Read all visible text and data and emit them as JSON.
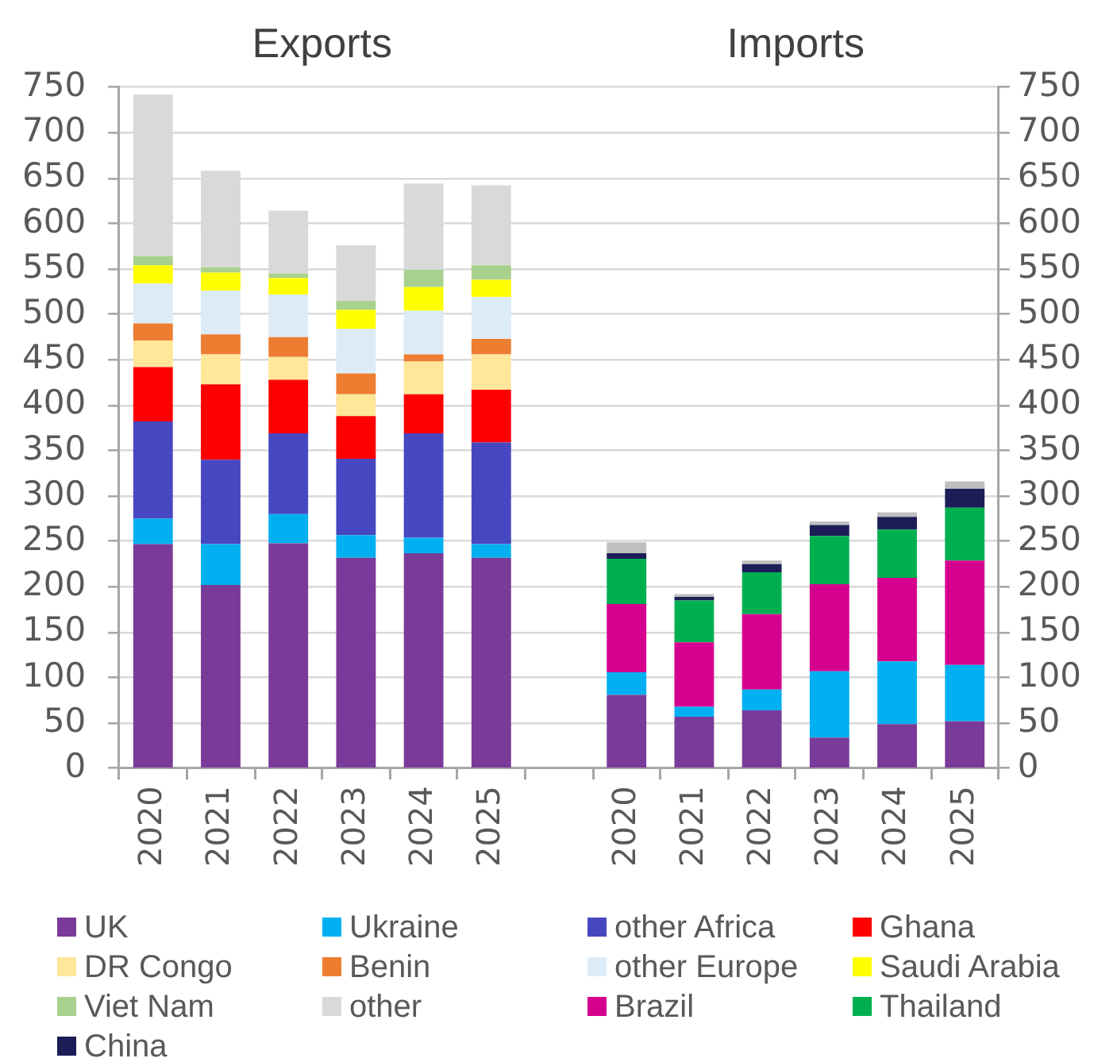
{
  "chart_data": {
    "type": "bar",
    "stacked": true,
    "categories": [
      "2020",
      "2021",
      "2022",
      "2023",
      "2024",
      "2025",
      null,
      "2020",
      "2021",
      "2022",
      "2023",
      "2024",
      "2025"
    ],
    "annotations": [
      "Exports",
      "Imports"
    ],
    "ylim": [
      0,
      750
    ],
    "yticks": [
      0,
      50,
      100,
      150,
      200,
      250,
      300,
      350,
      400,
      450,
      500,
      550,
      600,
      650,
      700,
      750
    ],
    "y2lim": [
      0,
      750
    ],
    "y2ticks": [
      0,
      50,
      100,
      150,
      200,
      250,
      300,
      350,
      400,
      450,
      500,
      550,
      600,
      650,
      700,
      750
    ],
    "grid": "y",
    "legend": "bottom",
    "series": [
      {
        "name": "UK",
        "color": "#7a3a99",
        "values": [
          247,
          202,
          248,
          232,
          237,
          232,
          null,
          81,
          57,
          64,
          34,
          49,
          52
        ]
      },
      {
        "name": "Ukraine",
        "color": "#00b0f0",
        "values": [
          28,
          45,
          32,
          25,
          17,
          15,
          null,
          25,
          11,
          23,
          73,
          69,
          62
        ]
      },
      {
        "name": "other Africa",
        "color": "#4747c2",
        "values": [
          107,
          93,
          89,
          84,
          115,
          112,
          null,
          null,
          null,
          null,
          null,
          null,
          null
        ]
      },
      {
        "name": "Ghana",
        "color": "#ff0000",
        "values": [
          60,
          83,
          59,
          47,
          43,
          58,
          null,
          null,
          null,
          null,
          null,
          null,
          null
        ]
      },
      {
        "name": "DR Congo",
        "color": "#ffe699",
        "values": [
          29,
          33,
          25,
          24,
          36,
          39,
          null,
          null,
          null,
          null,
          null,
          null,
          null
        ]
      },
      {
        "name": "Benin",
        "color": "#ed7d31",
        "values": [
          19,
          22,
          22,
          23,
          8,
          17,
          null,
          null,
          null,
          null,
          null,
          null,
          null
        ]
      },
      {
        "name": "other Europe",
        "color": "#ddebf7",
        "values": [
          44,
          48,
          47,
          49,
          48,
          46,
          null,
          null,
          null,
          null,
          null,
          null,
          null
        ]
      },
      {
        "name": "Saudi Arabia",
        "color": "#ffff00",
        "values": [
          20,
          20,
          18,
          21,
          26,
          19,
          null,
          null,
          null,
          null,
          null,
          null,
          null
        ]
      },
      {
        "name": "Viet Nam",
        "color": "#a9d18e",
        "values": [
          10,
          6,
          5,
          10,
          19,
          16,
          null,
          null,
          null,
          null,
          null,
          null,
          null
        ]
      },
      {
        "name": "other",
        "color": "#d9d9d9",
        "values": [
          178,
          106,
          69,
          61,
          95,
          88,
          null,
          null,
          null,
          null,
          null,
          null,
          null
        ]
      },
      {
        "name": "Brazil",
        "color": "#d6008f",
        "values": [
          null,
          null,
          null,
          null,
          null,
          null,
          null,
          75,
          71,
          83,
          96,
          92,
          115
        ]
      },
      {
        "name": "Thailand",
        "color": "#00b050",
        "values": [
          null,
          null,
          null,
          null,
          null,
          null,
          null,
          50,
          46,
          46,
          53,
          53,
          58
        ]
      },
      {
        "name": "China",
        "color": "#1c1c56",
        "values": [
          null,
          null,
          null,
          null,
          null,
          null,
          null,
          6,
          4,
          9,
          12,
          14,
          21
        ]
      },
      {
        "color": "#bfbfbf",
        "values": [
          null,
          null,
          null,
          null,
          null,
          null,
          null,
          12,
          3,
          4,
          4,
          5,
          8
        ]
      }
    ]
  }
}
